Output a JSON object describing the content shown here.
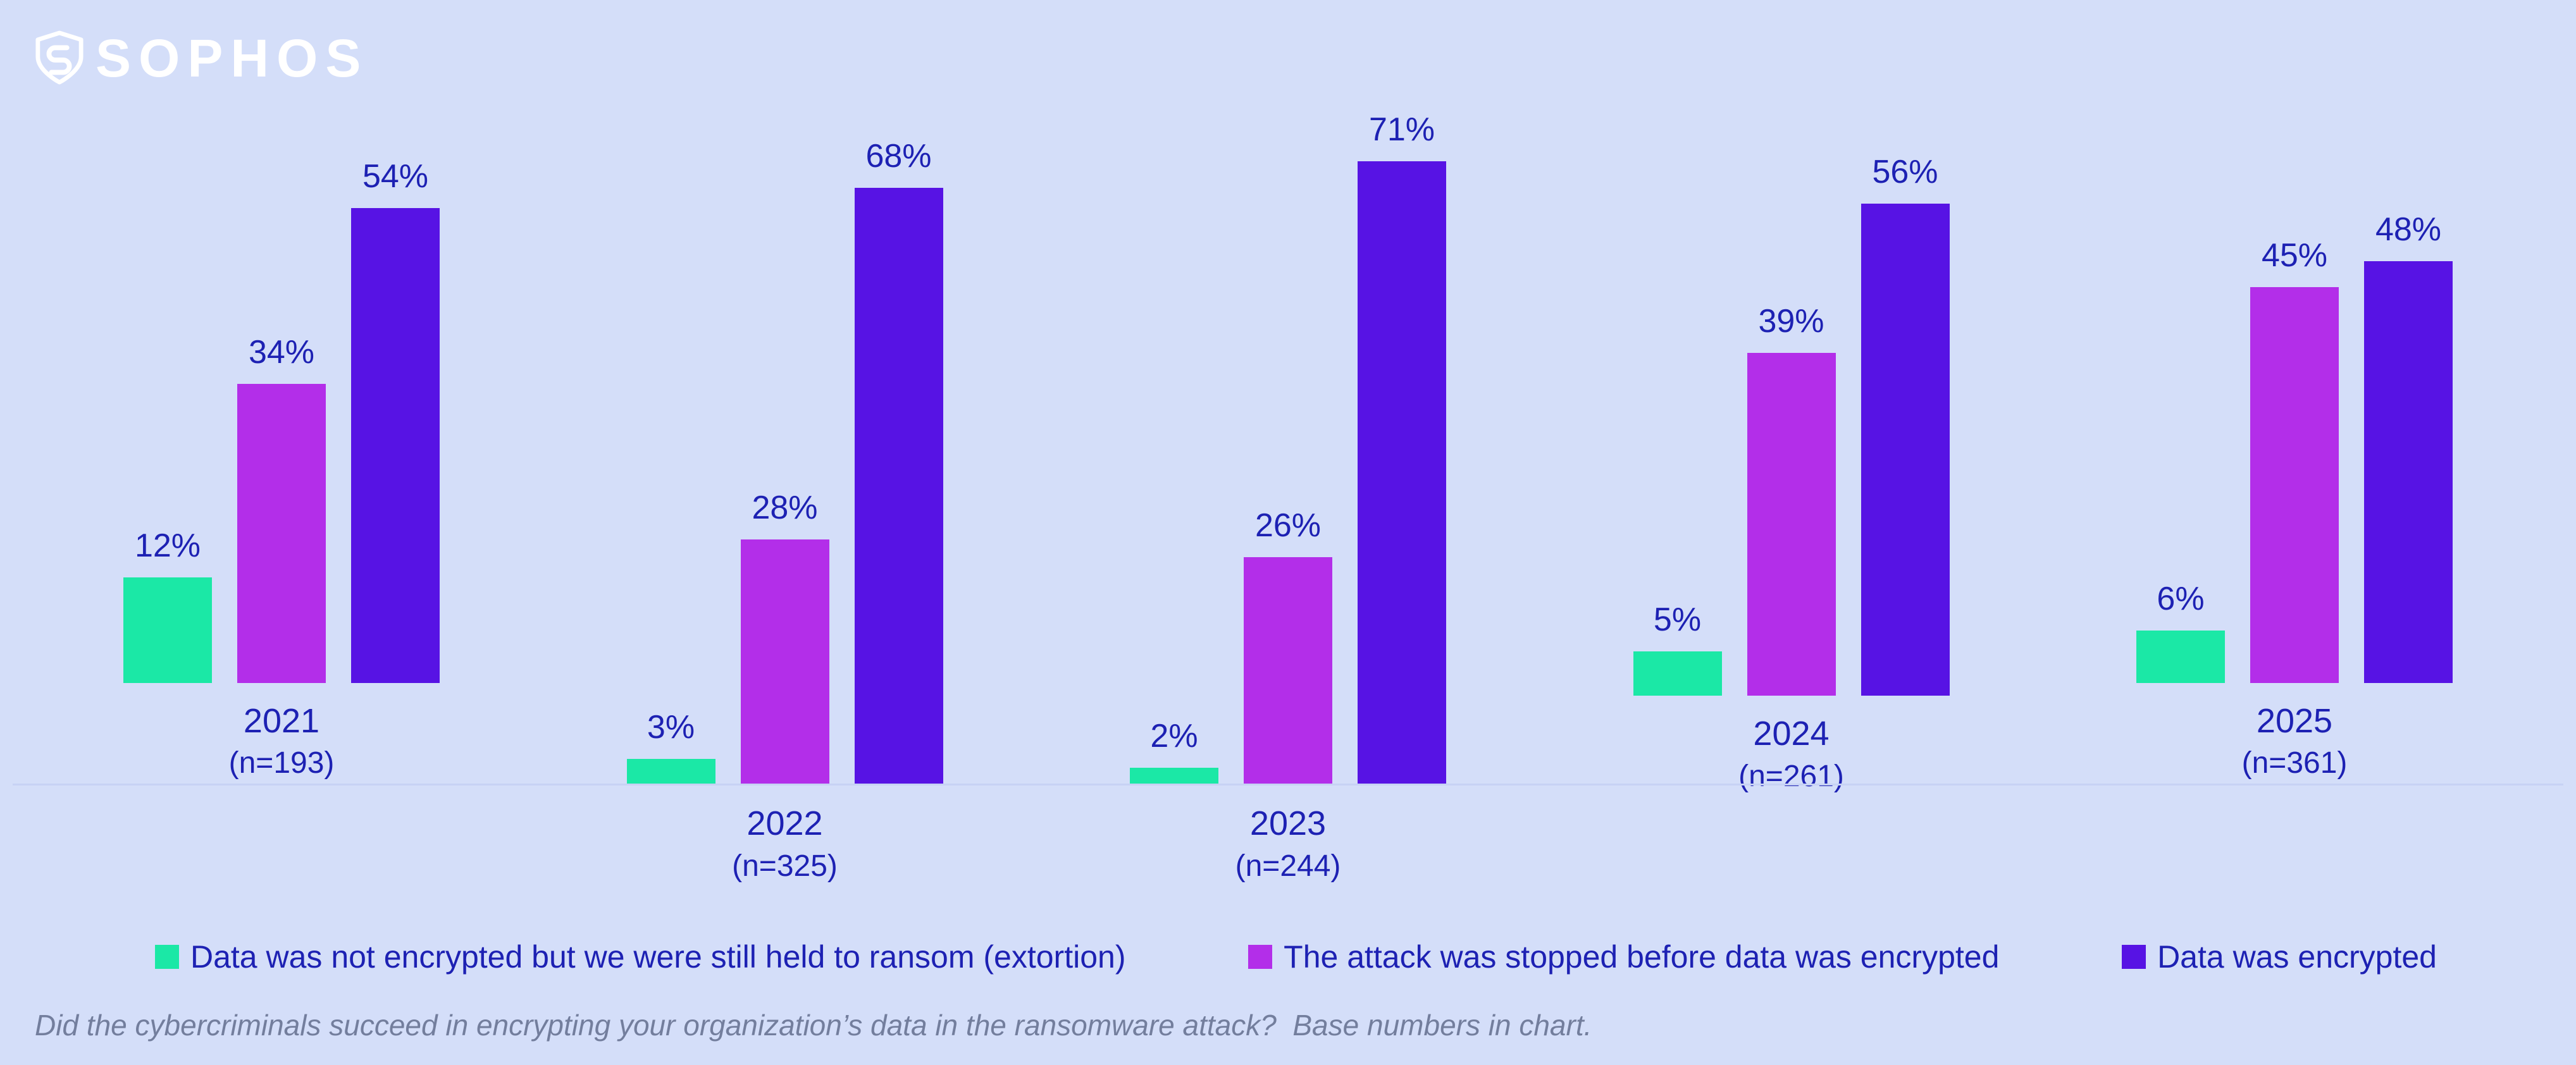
{
  "brand": {
    "logo_text": "SOPHOS"
  },
  "colors": {
    "background": "#d4def9",
    "text": "#1d21b3",
    "footnote_text": "#737e9d",
    "axis_line": "#c7d2f4"
  },
  "chart_data": {
    "type": "bar",
    "title": "",
    "categories": [
      "2021",
      "2022",
      "2023",
      "2024",
      "2025"
    ],
    "category_sublabels": [
      "(n=193)",
      "(n=325)",
      "(n=244)",
      "(n=261)",
      "(n=361)"
    ],
    "series": [
      {
        "name": "Data was not encrypted but we were still held to ransom (extortion)",
        "color": "#1be8a6",
        "values": [
          12,
          3,
          2,
          5,
          6
        ]
      },
      {
        "name": "The attack was stopped before data was encrypted",
        "color": "#b32ee9",
        "values": [
          34,
          28,
          26,
          39,
          45
        ]
      },
      {
        "name": "Data was encrypted",
        "color": "#5713e4",
        "values": [
          54,
          68,
          71,
          56,
          48
        ]
      }
    ],
    "value_suffix": "%",
    "xlabel": "",
    "ylabel": "",
    "ylim": [
      0,
      75
    ],
    "grid": false,
    "legend_position": "bottom"
  },
  "footnote": "Did the cybercriminals succeed in encrypting your organization’s data in the ransomware attack?  Base numbers in chart."
}
